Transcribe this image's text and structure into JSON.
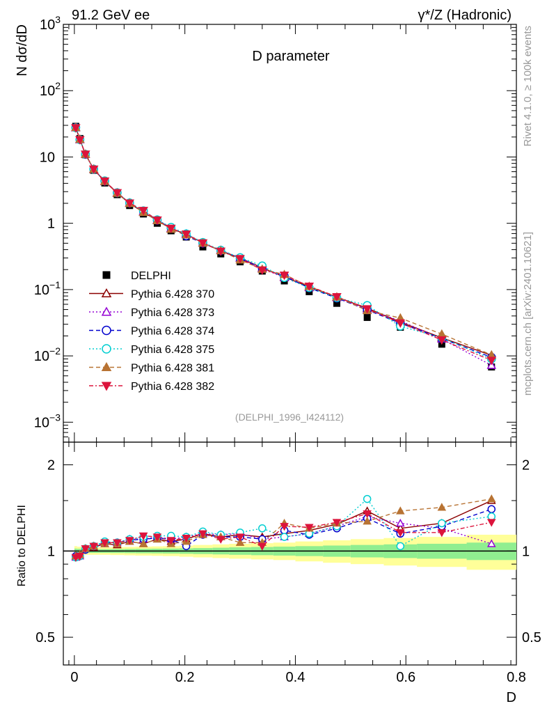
{
  "header": {
    "left": "91.2 GeV ee",
    "right": "γ*/Z (Hadronic)"
  },
  "side": {
    "rivet": "Rivet 4.1.0, ≥ 100k events",
    "mcplots": "mcplots.cern.ch [arXiv:2401.10621]"
  },
  "chart_data": {
    "type": "line",
    "title": "D parameter",
    "ylabel": "N  dσ/dD",
    "ratio_ylabel": "Ratio to DELPHI",
    "xlabel": "D",
    "analysis_tag": "(DELPHI_1996_I424112)",
    "xlim": [
      -0.02,
      0.8
    ],
    "ylim": [
      0.0005,
      1000
    ],
    "ratio_ylim": [
      0.4,
      2.4
    ],
    "y_scale": "log",
    "ratio_scale": "log",
    "legend_position": "center-left",
    "x_ticks": [
      {
        "v": 0,
        "label": "0"
      },
      {
        "v": 0.2,
        "label": "0.2"
      },
      {
        "v": 0.4,
        "label": "0.4"
      },
      {
        "v": 0.6,
        "label": "0.6"
      },
      {
        "v": 0.8,
        "label": "0.8"
      }
    ],
    "y_ticks": [
      {
        "v": 1000,
        "base": "10",
        "exp": "3"
      },
      {
        "v": 100,
        "base": "10",
        "exp": "2"
      },
      {
        "v": 10,
        "base": "10",
        "exp": ""
      },
      {
        "v": 1,
        "base": "1",
        "exp": ""
      },
      {
        "v": 0.1,
        "base": "10",
        "exp": "−1"
      },
      {
        "v": 0.01,
        "base": "10",
        "exp": "−2"
      },
      {
        "v": 0.001,
        "base": "10",
        "exp": "−3"
      }
    ],
    "ratio_ticks": [
      {
        "v": 0.5,
        "label": "0.5"
      },
      {
        "v": 1,
        "label": "1"
      },
      {
        "v": 2,
        "label": "2"
      }
    ],
    "x": [
      0.0025,
      0.01,
      0.02,
      0.035,
      0.055,
      0.0775,
      0.1,
      0.125,
      0.15,
      0.175,
      0.2025,
      0.2325,
      0.265,
      0.3,
      0.34,
      0.38,
      0.425,
      0.475,
      0.53,
      0.59,
      0.665,
      0.755
    ],
    "x_edges": [
      0,
      0.005,
      0.015,
      0.025,
      0.045,
      0.065,
      0.09,
      0.11,
      0.14,
      0.16,
      0.19,
      0.215,
      0.25,
      0.28,
      0.32,
      0.36,
      0.4,
      0.45,
      0.5,
      0.56,
      0.62,
      0.71,
      0.8
    ],
    "band_inner_halfwidth": [
      0.02,
      0.018,
      0.015,
      0.015,
      0.015,
      0.016,
      0.017,
      0.018,
      0.019,
      0.02,
      0.022,
      0.024,
      0.027,
      0.03,
      0.033,
      0.036,
      0.04,
      0.045,
      0.05,
      0.055,
      0.06,
      0.07
    ],
    "band_outer_halfwidth": [
      0.04,
      0.035,
      0.03,
      0.03,
      0.03,
      0.032,
      0.034,
      0.036,
      0.038,
      0.04,
      0.045,
      0.05,
      0.055,
      0.06,
      0.065,
      0.07,
      0.08,
      0.09,
      0.1,
      0.11,
      0.12,
      0.14
    ],
    "series": [
      {
        "name": "DELPHI",
        "marker": "square-filled",
        "color": "#000000",
        "dash": "none",
        "values": [
          29.0,
          19.0,
          10.8,
          6.3,
          4.05,
          2.7,
          1.85,
          1.38,
          1.0,
          0.77,
          0.62,
          0.44,
          0.345,
          0.262,
          0.19,
          0.135,
          0.093,
          0.062,
          0.038,
          0.027,
          0.015,
          0.0068
        ],
        "ratio": [
          1,
          1,
          1,
          1,
          1,
          1,
          1,
          1,
          1,
          1,
          1,
          1,
          1,
          1,
          1,
          1,
          1,
          1,
          1,
          1,
          1,
          1
        ]
      },
      {
        "name": "Pythia 6.428 370",
        "marker": "triangle-up-open",
        "color": "#8b0000",
        "dash": "none",
        "ratio": [
          0.96,
          0.97,
          1.02,
          1.03,
          1.06,
          1.05,
          1.08,
          1.06,
          1.1,
          1.08,
          1.1,
          1.15,
          1.12,
          1.14,
          1.12,
          1.15,
          1.18,
          1.24,
          1.38,
          1.2,
          1.25,
          1.5
        ]
      },
      {
        "name": "Pythia 6.428 373",
        "marker": "triangle-up-open",
        "color": "#9400d3",
        "dash": "2,3",
        "ratio": [
          0.95,
          0.96,
          1.02,
          1.04,
          1.06,
          1.07,
          1.1,
          1.1,
          1.12,
          1.1,
          1.12,
          1.15,
          1.14,
          1.15,
          1.1,
          1.12,
          1.15,
          1.22,
          1.32,
          1.25,
          1.2,
          1.06
        ]
      },
      {
        "name": "Pythia 6.428 374",
        "marker": "circle-open",
        "color": "#0000cd",
        "dash": "6,4",
        "ratio": [
          0.96,
          0.96,
          1.01,
          1.04,
          1.07,
          1.07,
          1.09,
          1.1,
          1.11,
          1.1,
          1.04,
          1.14,
          1.12,
          1.12,
          1.1,
          1.18,
          1.14,
          1.2,
          1.3,
          1.15,
          1.22,
          1.4
        ]
      },
      {
        "name": "Pythia 6.428 375",
        "marker": "circle-open",
        "color": "#00ced1",
        "dash": "2,3",
        "ratio": [
          0.95,
          0.96,
          1.02,
          1.04,
          1.08,
          1.07,
          1.1,
          1.12,
          1.13,
          1.13,
          1.12,
          1.17,
          1.14,
          1.16,
          1.2,
          1.12,
          1.15,
          1.22,
          1.52,
          1.04,
          1.25,
          1.32
        ]
      },
      {
        "name": "Pythia 6.428 381",
        "marker": "triangle-up-filled",
        "color": "#b87333",
        "dash": "6,4",
        "ratio": [
          0.96,
          0.97,
          1.02,
          1.04,
          1.06,
          1.06,
          1.08,
          1.06,
          1.1,
          1.06,
          1.08,
          1.14,
          1.12,
          1.07,
          1.07,
          1.25,
          1.2,
          1.25,
          1.27,
          1.38,
          1.42,
          1.52
        ]
      },
      {
        "name": "Pythia 6.428 382",
        "marker": "triangle-down-filled",
        "color": "#dc143c",
        "dash": "6,3,2,3",
        "ratio": [
          0.95,
          0.96,
          1.02,
          1.04,
          1.07,
          1.07,
          1.09,
          1.13,
          1.12,
          1.09,
          1.11,
          1.15,
          1.1,
          1.12,
          1.04,
          1.22,
          1.21,
          1.26,
          1.35,
          1.16,
          1.16,
          1.26
        ]
      }
    ]
  }
}
